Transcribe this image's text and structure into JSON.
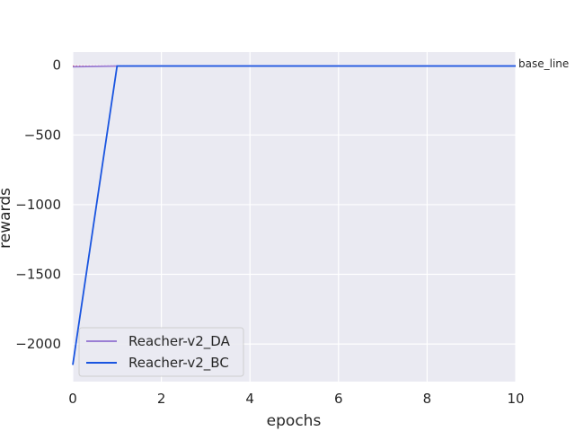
{
  "chart_data": {
    "type": "line",
    "title": "",
    "xlabel": "epochs",
    "ylabel": "rewards",
    "xlim": [
      0,
      10
    ],
    "ylim": [
      -2270,
      95
    ],
    "xticks": [
      0,
      2,
      4,
      6,
      8,
      10
    ],
    "yticks": [
      0,
      -500,
      -1000,
      -1500,
      -2000
    ],
    "ytick_labels": [
      "0",
      "−500",
      "−1000",
      "−1500",
      "−2000"
    ],
    "grid": true,
    "legend_position": "lower-left",
    "series": [
      {
        "name": "Reacher-v2_DA",
        "color": "#9b7fd4",
        "x": [
          0,
          1,
          2,
          3,
          4,
          5,
          6,
          7,
          8,
          9,
          10
        ],
        "y": [
          -10,
          -5,
          -4,
          -4,
          -4,
          -4,
          -4,
          -4,
          -4,
          -4,
          -4
        ]
      },
      {
        "name": "Reacher-v2_BC",
        "color": "#1a55e0",
        "x": [
          0,
          1,
          2,
          3,
          4,
          5,
          6,
          7,
          8,
          9,
          10
        ],
        "y": [
          -2150,
          -5,
          -5,
          -5,
          -5,
          -5,
          -5,
          -5,
          -5,
          -5,
          -5
        ]
      }
    ],
    "baseline": {
      "label": "base_line",
      "y": -4,
      "color": "#d62728"
    }
  }
}
